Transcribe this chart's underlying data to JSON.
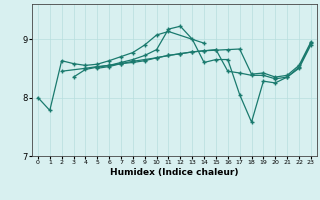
{
  "xlabel": "Humidex (Indice chaleur)",
  "bg_color": "#d8f0f0",
  "line_color": "#1a7a6e",
  "grid_color": "#b8dede",
  "xlim": [
    -0.5,
    23.5
  ],
  "ylim": [
    7.0,
    9.6
  ],
  "yticks": [
    7,
    8,
    9
  ],
  "xtick_labels": [
    "0",
    "1",
    "2",
    "3",
    "4",
    "5",
    "6",
    "7",
    "8",
    "9",
    "10",
    "11",
    "12",
    "13",
    "14",
    "15",
    "16",
    "17",
    "18",
    "19",
    "20",
    "21",
    "22",
    "23"
  ],
  "lines": [
    {
      "x": [
        0,
        1,
        2,
        3,
        4,
        5,
        6,
        7,
        8,
        9,
        10,
        11,
        14
      ],
      "y": [
        8.0,
        7.78,
        8.63,
        8.58,
        8.55,
        8.57,
        8.63,
        8.7,
        8.77,
        8.9,
        9.07,
        9.13,
        8.93
      ]
    },
    {
      "x": [
        2,
        4,
        5,
        6,
        7,
        8,
        9,
        10,
        11,
        12,
        13,
        14,
        15,
        16,
        17,
        18,
        19,
        20,
        21,
        22,
        23
      ],
      "y": [
        8.45,
        8.5,
        8.53,
        8.55,
        8.58,
        8.6,
        8.63,
        8.68,
        8.72,
        8.75,
        8.78,
        8.8,
        8.81,
        8.82,
        8.83,
        8.4,
        8.42,
        8.35,
        8.38,
        8.55,
        8.95
      ]
    },
    {
      "x": [
        3,
        4,
        5,
        6,
        7,
        8,
        9,
        10,
        11,
        12,
        13,
        14,
        15,
        16,
        17,
        18,
        19,
        20,
        21,
        22,
        23
      ],
      "y": [
        8.35,
        8.48,
        8.52,
        8.55,
        8.6,
        8.65,
        8.72,
        8.82,
        9.17,
        9.22,
        9.0,
        8.6,
        8.65,
        8.65,
        8.05,
        7.58,
        8.28,
        8.25,
        8.35,
        8.5,
        8.9
      ]
    },
    {
      "x": [
        5,
        6,
        7,
        8,
        9,
        10,
        11,
        12,
        13,
        14,
        15,
        16,
        17,
        18,
        19,
        20,
        21,
        22,
        23
      ],
      "y": [
        8.5,
        8.53,
        8.58,
        8.62,
        8.65,
        8.68,
        8.72,
        8.75,
        8.78,
        8.8,
        8.82,
        8.45,
        8.42,
        8.38,
        8.38,
        8.32,
        8.35,
        8.52,
        8.93
      ]
    }
  ]
}
